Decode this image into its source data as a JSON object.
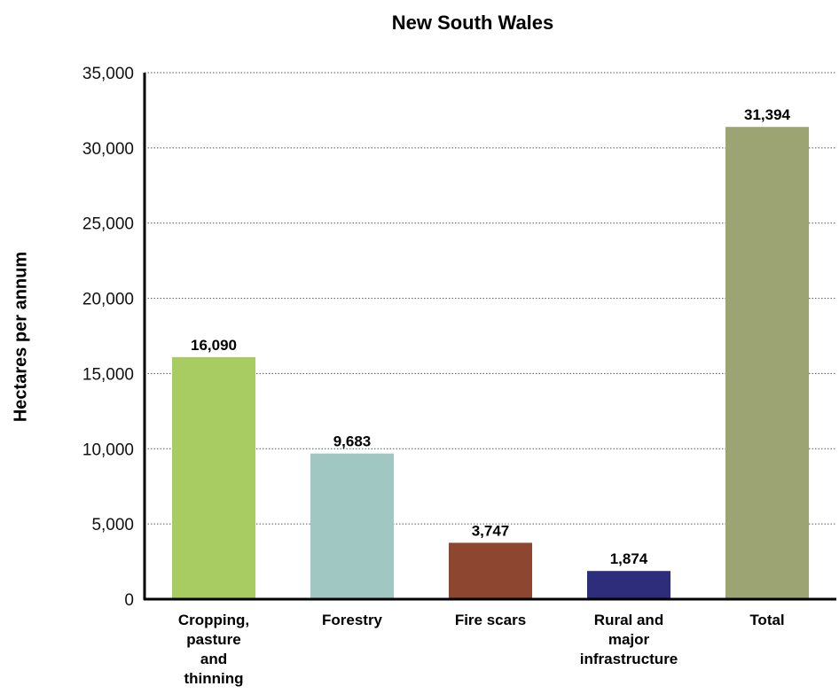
{
  "chart_data": {
    "type": "bar",
    "title": "New South Wales",
    "ylabel": "Hectares per annum",
    "xlabel": "",
    "ylim": [
      0,
      35000
    ],
    "yticks": [
      0,
      5000,
      10000,
      15000,
      20000,
      25000,
      30000,
      35000
    ],
    "ytick_labels": [
      "0",
      "5,000",
      "10,000",
      "15,000",
      "20,000",
      "25,000",
      "30,000",
      "35,000"
    ],
    "grid": "horizontal dotted",
    "categories": [
      [
        "Cropping,",
        "pasture",
        "and",
        "thinning"
      ],
      [
        "Forestry"
      ],
      [
        "Fire scars"
      ],
      [
        "Rural and",
        "major",
        "infrastructure"
      ],
      [
        "Total"
      ]
    ],
    "values": [
      16090,
      9683,
      3747,
      1874,
      31394
    ],
    "value_labels": [
      "16,090",
      "9,683",
      "3,747",
      "1,874",
      "31,394"
    ],
    "colors": [
      "#a8cc62",
      "#a0c7c1",
      "#8d4730",
      "#2e2d7b",
      "#9da473"
    ]
  }
}
